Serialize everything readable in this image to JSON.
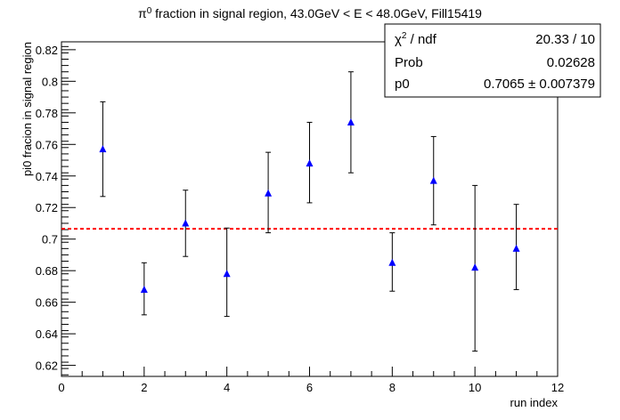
{
  "chart_data": {
    "type": "scatter",
    "title": "π⁰ fraction in signal region, 43.0GeV < E < 48.0GeV, Fill15419",
    "title_parts": {
      "pi": "π",
      "sup": "0",
      "rest": " fraction in signal region, 43.0GeV < E < 48.0GeV, Fill15419"
    },
    "xlabel": "run index",
    "ylabel": "pi0 fracion in signal region",
    "xlim": [
      0,
      12
    ],
    "ylim": [
      0.613,
      0.825
    ],
    "x_ticks": [
      0,
      2,
      4,
      6,
      8,
      10,
      12
    ],
    "x_tick_labels": [
      "0",
      "2",
      "4",
      "6",
      "8",
      "10",
      "12"
    ],
    "y_ticks": [
      0.62,
      0.64,
      0.66,
      0.68,
      0.7,
      0.72,
      0.74,
      0.76,
      0.78,
      0.8,
      0.82
    ],
    "y_tick_labels": [
      "0.62",
      "0.64",
      "0.66",
      "0.68",
      "0.7",
      "0.72",
      "0.74",
      "0.76",
      "0.78",
      "0.8",
      "0.82"
    ],
    "grid": false,
    "marker_color": "#0000ff",
    "fit_color": "#ff0000",
    "series": [
      {
        "x": [
          1,
          2,
          3,
          4,
          5,
          6,
          7,
          8,
          9,
          10,
          11
        ],
        "y": [
          0.757,
          0.668,
          0.71,
          0.678,
          0.729,
          0.748,
          0.774,
          0.685,
          0.737,
          0.682,
          0.694
        ],
        "y_err_low": [
          0.03,
          0.016,
          0.021,
          0.027,
          0.025,
          0.025,
          0.032,
          0.018,
          0.028,
          0.053,
          0.026
        ],
        "y_err_high": [
          0.03,
          0.017,
          0.021,
          0.029,
          0.026,
          0.026,
          0.032,
          0.019,
          0.028,
          0.052,
          0.028
        ]
      }
    ],
    "fit_line": {
      "value": 0.7065
    },
    "stats_box": {
      "position": "top-right",
      "rows": [
        {
          "label": "χ² / ndf",
          "chi": "χ",
          "sup": "2",
          "rest": " / ndf",
          "value": "20.33 / 10"
        },
        {
          "label": "Prob",
          "value": "0.02628"
        },
        {
          "label": "p0",
          "value": "0.7065 ± 0.007379"
        }
      ]
    }
  }
}
